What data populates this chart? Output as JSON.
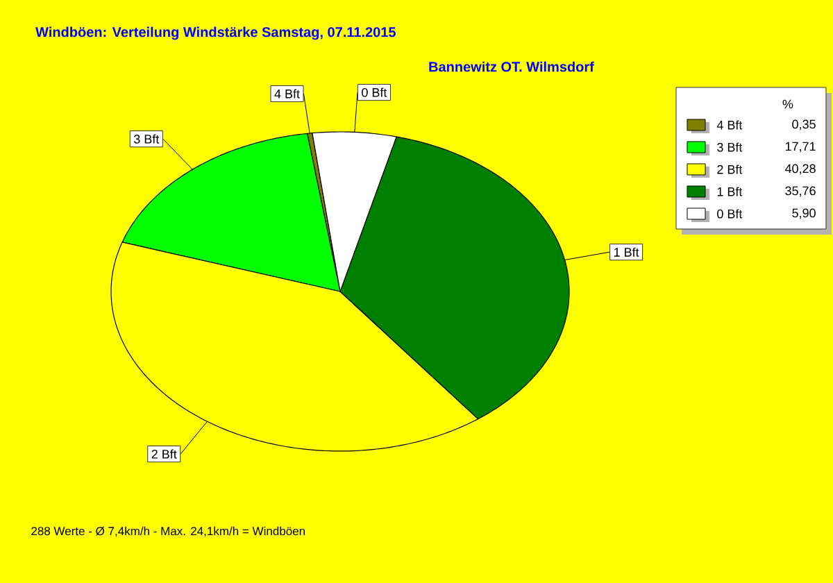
{
  "chart_data": {
    "type": "pie",
    "title": "Windböen: Verteilung Windstärke  Samstag, 07.11.2015",
    "subtitle": "Bannewitz OT. Wilmsdorf",
    "categories": [
      "4 Bft",
      "3 Bft",
      "2 Bft",
      "1 Bft",
      "0 Bft"
    ],
    "values": [
      0.35,
      17.71,
      40.28,
      35.76,
      5.9
    ],
    "colors": [
      "#808000",
      "#00ff00",
      "#ffff00",
      "#008000",
      "#ffffff"
    ],
    "value_labels": [
      "0,35",
      "17,71",
      "40,28",
      "35,76",
      "5,90"
    ],
    "legend": "top right",
    "legend_title": "%",
    "annotations": [
      "288 Werte  -  Ø 7,4km/h  -  Max. 24,1km/h = Windböen"
    ]
  }
}
